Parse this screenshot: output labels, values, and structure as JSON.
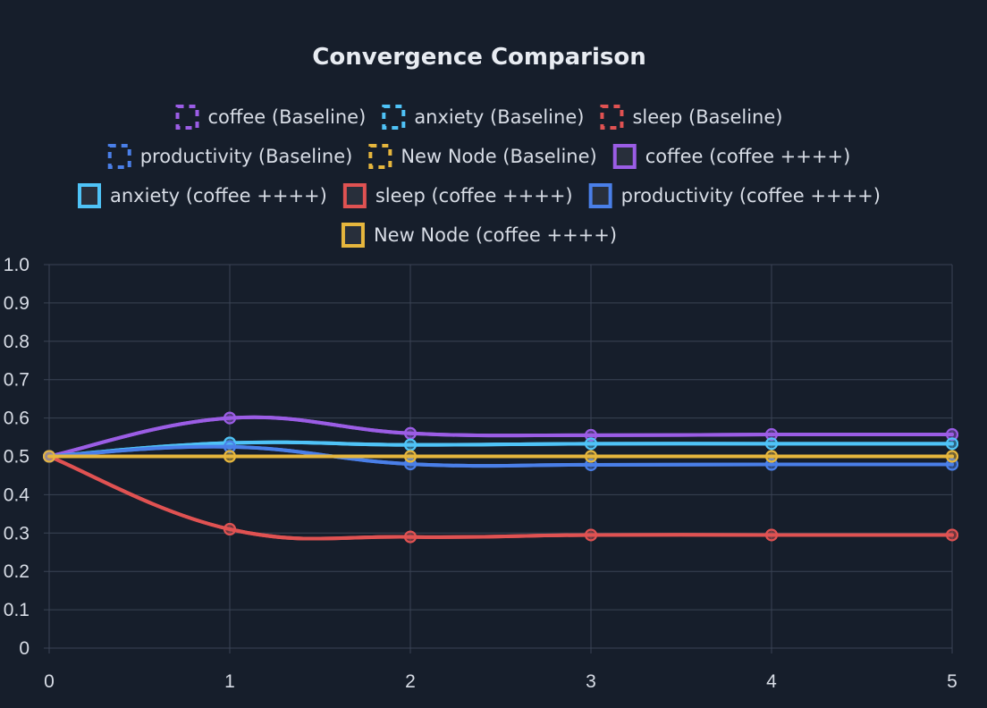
{
  "chart_data": {
    "type": "line",
    "title": "Convergence Comparison",
    "x": [
      0,
      1,
      2,
      3,
      4,
      5
    ],
    "xlim": [
      0,
      5
    ],
    "ylim": [
      0,
      1
    ],
    "x_ticks": [
      "0",
      "1",
      "2",
      "3",
      "4",
      "5"
    ],
    "y_ticks": [
      "0",
      "0.1",
      "0.2",
      "0.3",
      "0.4",
      "0.5",
      "0.6",
      "0.7",
      "0.8",
      "0.9",
      "1.0"
    ],
    "grid": true,
    "legend_position": "top",
    "series": [
      {
        "name": "coffee (Baseline)",
        "color": "#9b5de5",
        "dashed": true,
        "values": [
          0.5,
          0.6,
          0.56,
          0.555,
          0.557,
          0.557
        ]
      },
      {
        "name": "anxiety  (Baseline)",
        "color": "#4fc3f7",
        "dashed": true,
        "values": [
          0.5,
          0.535,
          0.53,
          0.533,
          0.533,
          0.533
        ]
      },
      {
        "name": "sleep (Baseline)",
        "color": "#e05252",
        "dashed": true,
        "values": [
          0.5,
          0.31,
          0.29,
          0.295,
          0.295,
          0.295
        ]
      },
      {
        "name": "productivity (Baseline)",
        "color": "#4a7fe8",
        "dashed": true,
        "values": [
          0.5,
          0.525,
          0.48,
          0.478,
          0.479,
          0.479
        ]
      },
      {
        "name": "New Node (Baseline)",
        "color": "#e6b63d",
        "dashed": true,
        "values": [
          0.5,
          0.5,
          0.5,
          0.5,
          0.5,
          0.5
        ]
      },
      {
        "name": "coffee (coffee ++++)",
        "color": "#9b5de5",
        "dashed": false,
        "values": [
          0.5,
          0.6,
          0.56,
          0.555,
          0.557,
          0.557
        ]
      },
      {
        "name": "anxiety  (coffee ++++)",
        "color": "#4fc3f7",
        "dashed": false,
        "values": [
          0.5,
          0.535,
          0.53,
          0.533,
          0.533,
          0.533
        ]
      },
      {
        "name": "sleep (coffee ++++)",
        "color": "#e05252",
        "dashed": false,
        "values": [
          0.5,
          0.31,
          0.29,
          0.295,
          0.295,
          0.295
        ]
      },
      {
        "name": "productivity (coffee ++++)",
        "color": "#4a7fe8",
        "dashed": false,
        "values": [
          0.5,
          0.525,
          0.48,
          0.478,
          0.479,
          0.479
        ]
      },
      {
        "name": "New Node (coffee ++++)",
        "color": "#e6b63d",
        "dashed": false,
        "values": [
          0.5,
          0.5,
          0.5,
          0.5,
          0.5,
          0.5
        ]
      }
    ]
  }
}
